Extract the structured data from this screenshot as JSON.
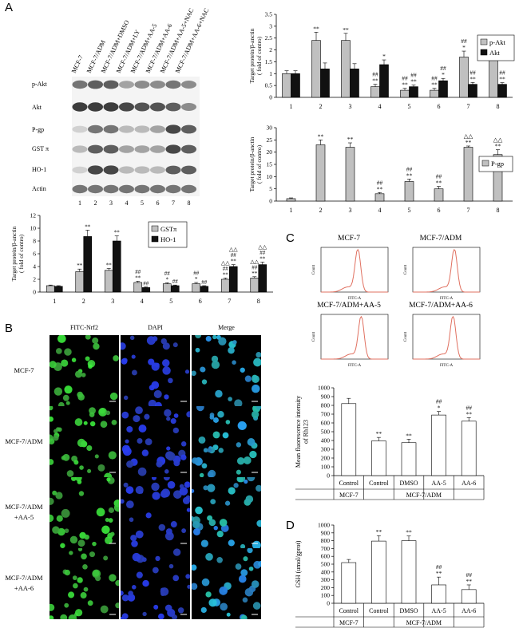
{
  "panels": {
    "A": "A",
    "B": "B",
    "C": "C",
    "D": "D"
  },
  "blot": {
    "lane_headers": [
      "MCF-7",
      "MCF-7/ADM",
      "MCF-7/ADM+DMSO",
      "MCF-7/ADM+LY",
      "MCF-7/ADM+AA-5",
      "MCF-7/ADM+AA-6",
      "MCF-7/ADM+AA-5+NAC",
      "MCF-7/ADM+AA-6+NAC"
    ],
    "rows": [
      "p-Akt",
      "Akt",
      "P-gp",
      "GST π",
      "HO-1",
      "Actin"
    ],
    "lane_numbers": [
      "1",
      "2",
      "3",
      "4",
      "5",
      "6",
      "7",
      "8"
    ]
  },
  "chart_data": [
    {
      "id": "akt",
      "type": "bar",
      "ylabel": "Target protein/β-anctin\n( fold of contro)",
      "ylim": [
        0,
        3.5
      ],
      "yticks": [
        "0",
        "0.5",
        "1",
        "1.5",
        "2",
        "2.5",
        "3",
        "3.5"
      ],
      "categories": [
        "1",
        "2",
        "3",
        "4",
        "5",
        "6",
        "7",
        "8"
      ],
      "series": [
        {
          "name": "p-Akt",
          "color": "#c0c0c0",
          "values": [
            1.0,
            2.4,
            2.4,
            0.45,
            0.3,
            0.3,
            1.7,
            1.7
          ],
          "errors": [
            0.12,
            0.35,
            0.3,
            0.1,
            0.08,
            0.08,
            0.25,
            0.2
          ],
          "annot": [
            [
              "",
              ""
            ],
            [
              "**"
            ],
            [
              "**"
            ],
            [
              "##",
              "**"
            ],
            [
              "##",
              "**"
            ],
            [
              "##",
              "**"
            ],
            [
              "##",
              "*"
            ],
            [
              "##",
              "*"
            ]
          ]
        },
        {
          "name": "Akt",
          "color": "#111111",
          "values": [
            1.0,
            1.2,
            1.2,
            1.38,
            0.45,
            0.7,
            0.55,
            0.55
          ],
          "errors": [
            0.12,
            0.25,
            0.22,
            0.2,
            0.07,
            0.1,
            0.08,
            0.07
          ],
          "annot": [
            [],
            [],
            [],
            [
              "*"
            ],
            [
              "##",
              "**"
            ],
            [
              "##",
              "*"
            ],
            [
              "##",
              "**"
            ],
            [
              "##",
              "**"
            ]
          ]
        }
      ],
      "legend": "top-right"
    },
    {
      "id": "pgp",
      "type": "bar",
      "ylabel": "Target protein/β-anctin\n( fold of contro)",
      "ylim": [
        0,
        30
      ],
      "yticks": [
        "0",
        "5",
        "10",
        "15",
        "20",
        "25",
        "30"
      ],
      "categories": [
        "1",
        "2",
        "3",
        "4",
        "5",
        "6",
        "7",
        "8"
      ],
      "series": [
        {
          "name": "P-gp",
          "color": "#c0c0c0",
          "values": [
            1,
            23,
            22,
            3,
            8,
            5,
            22,
            19
          ],
          "errors": [
            0.3,
            2,
            1.8,
            0.5,
            1,
            1,
            0.5,
            2
          ],
          "annot": [
            [],
            [
              "**"
            ],
            [
              "**"
            ],
            [
              "##",
              "**"
            ],
            [
              "##",
              "**"
            ],
            [
              "##",
              "**"
            ],
            [
              "△△",
              "**"
            ],
            [
              "△△",
              "**"
            ]
          ]
        }
      ],
      "legend": "right"
    },
    {
      "id": "gst",
      "type": "bar",
      "ylabel": "Target protein/β-anctin\n( fold of contro)",
      "ylim": [
        0,
        12
      ],
      "yticks": [
        "0",
        "2",
        "4",
        "6",
        "8",
        "10",
        "12"
      ],
      "categories": [
        "1",
        "2",
        "3",
        "4",
        "5",
        "6",
        "7",
        "8"
      ],
      "series": [
        {
          "name": "GSTπ",
          "color": "#c0c0c0",
          "values": [
            1.0,
            3.2,
            3.4,
            1.5,
            1.3,
            1.3,
            2.0,
            2.2
          ],
          "errors": [
            0.1,
            0.4,
            0.3,
            0.2,
            0.15,
            0.2,
            0.2,
            0.2
          ],
          "annot": [
            [],
            [
              "**"
            ],
            [
              "**"
            ],
            [
              "##",
              "**"
            ],
            [
              "##",
              "*"
            ],
            [
              "##",
              "*"
            ],
            [
              "△△",
              "##",
              "**"
            ],
            [
              "△△",
              "##",
              "**"
            ]
          ]
        },
        {
          "name": "HO-1",
          "color": "#111111",
          "values": [
            0.9,
            8.7,
            8.0,
            0.7,
            1.0,
            0.9,
            4.0,
            4.3
          ],
          "errors": [
            0.1,
            1.0,
            0.8,
            0.1,
            0.1,
            0.1,
            0.3,
            0.4
          ],
          "annot": [
            [],
            [
              "**"
            ],
            [
              "**"
            ],
            [
              "##"
            ],
            [
              "##"
            ],
            [
              "##"
            ],
            [
              "△△",
              "##",
              "**"
            ],
            [
              "△△",
              "##",
              "**"
            ]
          ]
        }
      ],
      "legend": "top-right"
    },
    {
      "id": "rh123",
      "type": "bar",
      "ylabel": "Mean fluorescence intensity\nof Rh123",
      "ylim": [
        0,
        1000
      ],
      "yticks": [
        "0",
        "100",
        "200",
        "300",
        "400",
        "500",
        "600",
        "700",
        "800",
        "900",
        "1000"
      ],
      "categories": [
        "Control",
        "Control",
        "DMSO",
        "AA-5",
        "AA-6"
      ],
      "groups": [
        {
          "label": "MCF-7",
          "span": 1
        },
        {
          "label": "MCF-7/ADM",
          "span": 4
        }
      ],
      "series": [
        {
          "name": "",
          "color": "#ffffff",
          "values": [
            820,
            395,
            375,
            690,
            620
          ],
          "errors": [
            60,
            40,
            40,
            40,
            40
          ],
          "annot": [
            [],
            [
              "**"
            ],
            [
              "**"
            ],
            [
              "##",
              "*"
            ],
            [
              "##",
              "**"
            ]
          ]
        }
      ]
    },
    {
      "id": "gsh",
      "type": "bar",
      "ylabel": "GSH (umol/gprot)",
      "ylim": [
        0,
        1000
      ],
      "yticks": [
        "0",
        "100",
        "200",
        "300",
        "400",
        "500",
        "600",
        "700",
        "800",
        "900",
        "1000"
      ],
      "categories": [
        "Control",
        "Control",
        "DMSO",
        "AA-5",
        "AA-6"
      ],
      "groups": [
        {
          "label": "MCF-7",
          "span": 1
        },
        {
          "label": "MCF-7/ADM",
          "span": 4
        }
      ],
      "series": [
        {
          "name": "",
          "color": "#ffffff",
          "values": [
            520,
            795,
            800,
            235,
            175
          ],
          "errors": [
            40,
            70,
            60,
            100,
            60
          ],
          "annot": [
            [],
            [
              "**"
            ],
            [
              "**"
            ],
            [
              "##",
              "**"
            ],
            [
              "##",
              "**"
            ]
          ]
        }
      ]
    }
  ],
  "micro": {
    "cols": [
      "FITC-Nrf2",
      "DAPI",
      "Merge"
    ],
    "rows": [
      [
        "MCF-7"
      ],
      [
        "MCF-7/ADM"
      ],
      [
        "MCF-7/ADM",
        "+AA-5"
      ],
      [
        "MCF-7/ADM",
        "+AA-6"
      ]
    ]
  },
  "flow": {
    "titles": [
      "MCF-7",
      "MCF-7/ADM",
      "MCF-7/ADM+AA-5",
      "MCF-7/ADM+AA-6"
    ],
    "xlabel": "FITC-A",
    "ylabel": "Count",
    "curve_color": "#e07060"
  }
}
